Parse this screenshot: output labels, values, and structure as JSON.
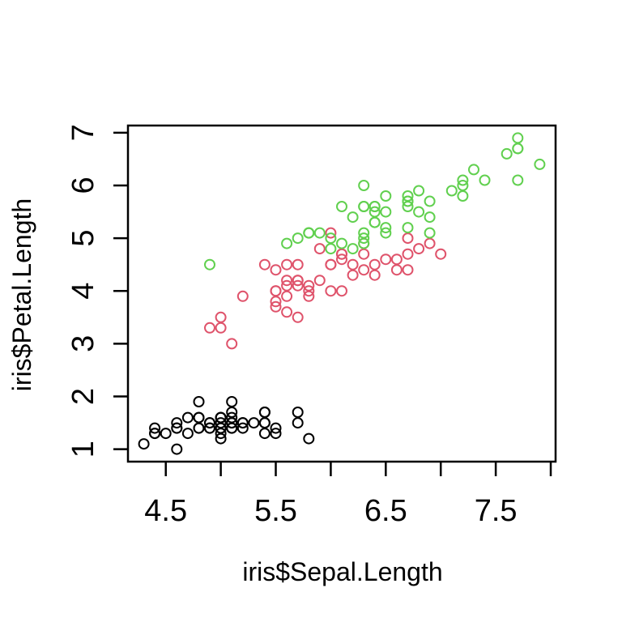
{
  "figure": {
    "background_color": "#ffffff",
    "title": ""
  },
  "chart_data": {
    "type": "scatter",
    "title": "",
    "xlabel": "iris$Sepal.Length",
    "ylabel": "iris$Petal.Length",
    "xlim": [
      4.156,
      8.044
    ],
    "ylim": [
      0.764,
      7.136
    ],
    "grid": false,
    "legend": "none",
    "axis_color": "#000000",
    "x_ticks": [
      {
        "v": 4.5,
        "label": "4.5"
      },
      {
        "v": 5.0,
        "label": ""
      },
      {
        "v": 5.5,
        "label": "5.5"
      },
      {
        "v": 6.0,
        "label": ""
      },
      {
        "v": 6.5,
        "label": "6.5"
      },
      {
        "v": 7.0,
        "label": ""
      },
      {
        "v": 7.5,
        "label": "7.5"
      },
      {
        "v": 8.0,
        "label": ""
      }
    ],
    "y_ticks": [
      {
        "v": 1,
        "label": "1"
      },
      {
        "v": 2,
        "label": "2"
      },
      {
        "v": 3,
        "label": "3"
      },
      {
        "v": 4,
        "label": "4"
      },
      {
        "v": 5,
        "label": "5"
      },
      {
        "v": 6,
        "label": "6"
      },
      {
        "v": 7,
        "label": "7"
      }
    ],
    "point_style": {
      "shape": "open-circle",
      "radius": 6,
      "stroke_width": 2
    },
    "series": [
      {
        "name": "black",
        "color": "#000000",
        "points": [
          [
            5.1,
            1.4
          ],
          [
            4.9,
            1.4
          ],
          [
            4.7,
            1.3
          ],
          [
            4.6,
            1.5
          ],
          [
            5.0,
            1.4
          ],
          [
            5.4,
            1.7
          ],
          [
            4.6,
            1.4
          ],
          [
            5.0,
            1.5
          ],
          [
            4.4,
            1.4
          ],
          [
            4.9,
            1.5
          ],
          [
            5.4,
            1.5
          ],
          [
            4.8,
            1.6
          ],
          [
            4.8,
            1.4
          ],
          [
            4.3,
            1.1
          ],
          [
            5.8,
            1.2
          ],
          [
            5.7,
            1.5
          ],
          [
            5.4,
            1.3
          ],
          [
            5.1,
            1.4
          ],
          [
            5.7,
            1.7
          ],
          [
            5.1,
            1.5
          ],
          [
            5.4,
            1.7
          ],
          [
            5.1,
            1.5
          ],
          [
            4.6,
            1.0
          ],
          [
            5.1,
            1.7
          ],
          [
            4.8,
            1.9
          ],
          [
            5.0,
            1.6
          ],
          [
            5.0,
            1.6
          ],
          [
            5.2,
            1.5
          ],
          [
            5.2,
            1.4
          ],
          [
            4.7,
            1.6
          ],
          [
            4.8,
            1.6
          ],
          [
            5.4,
            1.5
          ],
          [
            5.2,
            1.5
          ],
          [
            5.5,
            1.4
          ],
          [
            4.9,
            1.5
          ],
          [
            5.0,
            1.2
          ],
          [
            5.5,
            1.3
          ],
          [
            4.9,
            1.4
          ],
          [
            4.4,
            1.3
          ],
          [
            5.1,
            1.5
          ],
          [
            5.0,
            1.3
          ],
          [
            4.5,
            1.3
          ],
          [
            4.4,
            1.3
          ],
          [
            5.0,
            1.6
          ],
          [
            5.1,
            1.9
          ],
          [
            4.8,
            1.4
          ],
          [
            5.1,
            1.6
          ],
          [
            4.6,
            1.4
          ],
          [
            5.3,
            1.5
          ],
          [
            5.0,
            1.4
          ]
        ]
      },
      {
        "name": "red",
        "color": "#DF536B",
        "points": [
          [
            7.0,
            4.7
          ],
          [
            6.4,
            4.5
          ],
          [
            6.9,
            4.9
          ],
          [
            5.5,
            4.0
          ],
          [
            6.5,
            4.6
          ],
          [
            5.7,
            4.5
          ],
          [
            6.3,
            4.7
          ],
          [
            4.9,
            3.3
          ],
          [
            6.6,
            4.6
          ],
          [
            5.2,
            3.9
          ],
          [
            5.0,
            3.5
          ],
          [
            5.9,
            4.2
          ],
          [
            6.0,
            4.0
          ],
          [
            6.1,
            4.7
          ],
          [
            5.6,
            3.6
          ],
          [
            6.7,
            4.4
          ],
          [
            5.6,
            4.5
          ],
          [
            5.8,
            4.1
          ],
          [
            6.2,
            4.5
          ],
          [
            5.6,
            3.9
          ],
          [
            5.9,
            4.8
          ],
          [
            6.1,
            4.0
          ],
          [
            6.3,
            4.9
          ],
          [
            6.1,
            4.7
          ],
          [
            6.4,
            4.3
          ],
          [
            6.6,
            4.4
          ],
          [
            6.8,
            4.8
          ],
          [
            6.7,
            5.0
          ],
          [
            6.0,
            4.5
          ],
          [
            5.7,
            3.5
          ],
          [
            5.5,
            3.8
          ],
          [
            5.5,
            3.7
          ],
          [
            5.8,
            3.9
          ],
          [
            6.0,
            5.1
          ],
          [
            5.4,
            4.5
          ],
          [
            6.0,
            4.5
          ],
          [
            6.7,
            4.7
          ],
          [
            6.3,
            4.4
          ],
          [
            5.6,
            4.1
          ],
          [
            5.5,
            4.0
          ],
          [
            5.5,
            4.4
          ],
          [
            6.1,
            4.6
          ],
          [
            5.8,
            4.0
          ],
          [
            5.0,
            3.3
          ],
          [
            5.6,
            4.2
          ],
          [
            5.7,
            4.2
          ],
          [
            5.7,
            4.2
          ],
          [
            6.2,
            4.3
          ],
          [
            5.1,
            3.0
          ],
          [
            5.7,
            4.1
          ]
        ]
      },
      {
        "name": "green",
        "color": "#61D04F",
        "points": [
          [
            6.3,
            6.0
          ],
          [
            5.8,
            5.1
          ],
          [
            7.1,
            5.9
          ],
          [
            6.3,
            5.6
          ],
          [
            6.5,
            5.8
          ],
          [
            7.6,
            6.6
          ],
          [
            4.9,
            4.5
          ],
          [
            7.3,
            6.3
          ],
          [
            6.7,
            5.8
          ],
          [
            7.2,
            6.1
          ],
          [
            6.5,
            5.1
          ],
          [
            6.4,
            5.3
          ],
          [
            6.8,
            5.5
          ],
          [
            5.7,
            5.0
          ],
          [
            5.8,
            5.1
          ],
          [
            6.4,
            5.3
          ],
          [
            6.5,
            5.5
          ],
          [
            7.7,
            6.7
          ],
          [
            7.7,
            6.9
          ],
          [
            6.0,
            5.0
          ],
          [
            6.9,
            5.7
          ],
          [
            5.6,
            4.9
          ],
          [
            7.7,
            6.7
          ],
          [
            6.3,
            4.9
          ],
          [
            6.7,
            5.7
          ],
          [
            7.2,
            6.0
          ],
          [
            6.2,
            4.8
          ],
          [
            6.1,
            4.9
          ],
          [
            6.4,
            5.6
          ],
          [
            7.2,
            5.8
          ],
          [
            7.4,
            6.1
          ],
          [
            7.9,
            6.4
          ],
          [
            6.4,
            5.6
          ],
          [
            6.3,
            5.1
          ],
          [
            6.1,
            5.6
          ],
          [
            7.7,
            6.1
          ],
          [
            6.3,
            5.6
          ],
          [
            6.4,
            5.5
          ],
          [
            6.0,
            4.8
          ],
          [
            6.9,
            5.4
          ],
          [
            6.7,
            5.6
          ],
          [
            6.9,
            5.1
          ],
          [
            5.8,
            5.1
          ],
          [
            6.8,
            5.9
          ],
          [
            6.7,
            5.7
          ],
          [
            6.7,
            5.2
          ],
          [
            6.3,
            5.0
          ],
          [
            6.5,
            5.2
          ],
          [
            6.2,
            5.4
          ],
          [
            5.9,
            5.1
          ]
        ]
      }
    ]
  }
}
